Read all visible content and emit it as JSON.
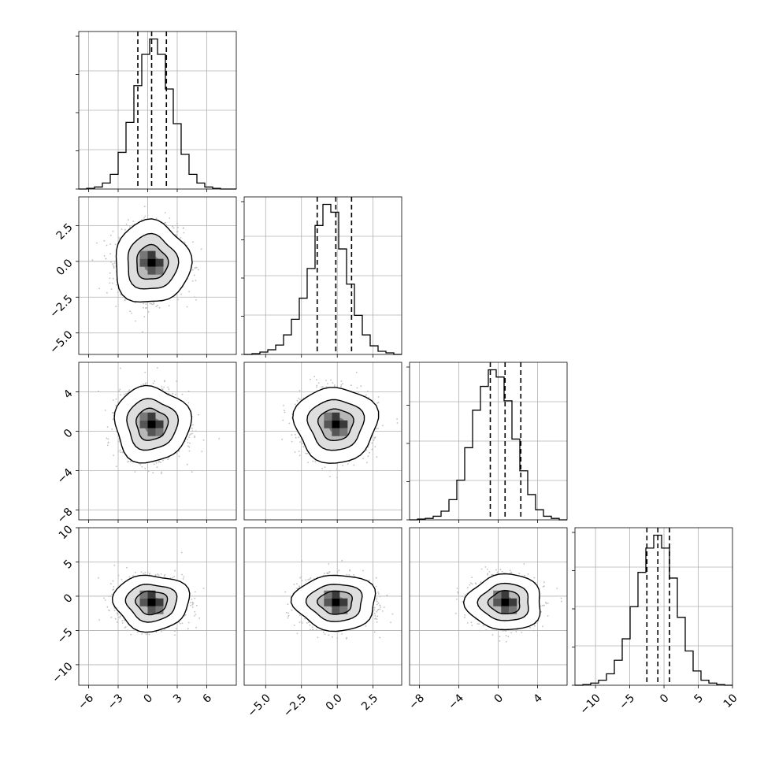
{
  "chart_data": [
    {
      "type": "histogram",
      "variable_index": 0,
      "xlim": [
        -7,
        9
      ],
      "bin_edges": [
        -7,
        -6.2,
        -5.4,
        -4.6,
        -3.8,
        -3.0,
        -2.2,
        -1.4,
        -0.6,
        0.2,
        1.0,
        1.8,
        2.6,
        3.4,
        4.2,
        5.0,
        5.8,
        6.6,
        7.4,
        8.2,
        9.0
      ],
      "counts": [
        0,
        1,
        3,
        9,
        22,
        55,
        100,
        155,
        202,
        225,
        202,
        150,
        98,
        52,
        22,
        9,
        3,
        1,
        0,
        0
      ],
      "quantiles": [
        -1.0,
        0.4,
        1.9
      ],
      "grid": true
    },
    {
      "type": "histogram",
      "variable_index": 1,
      "xlim": [
        -6.5,
        4.5
      ],
      "bin_edges": [
        -6.5,
        -5.95,
        -5.4,
        -4.85,
        -4.3,
        -3.75,
        -3.2,
        -2.65,
        -2.1,
        -1.55,
        -1.0,
        -0.45,
        0.1,
        0.65,
        1.2,
        1.75,
        2.3,
        2.85,
        3.4,
        3.95,
        4.5
      ],
      "counts": [
        0,
        1,
        3,
        6,
        12,
        25,
        45,
        72,
        110,
        165,
        192,
        182,
        135,
        90,
        50,
        25,
        11,
        4,
        2,
        0
      ],
      "quantiles": [
        -1.4,
        -0.1,
        1.0
      ],
      "grid": true
    },
    {
      "type": "histogram",
      "variable_index": 2,
      "xlim": [
        -9,
        7
      ],
      "bin_edges": [
        -9,
        -8.2,
        -7.4,
        -6.6,
        -5.8,
        -5.0,
        -4.2,
        -3.4,
        -2.6,
        -1.8,
        -1.0,
        -0.2,
        0.6,
        1.4,
        2.2,
        3.0,
        3.8,
        4.6,
        5.4,
        6.2,
        7.0
      ],
      "counts": [
        0,
        1,
        2,
        5,
        12,
        28,
        55,
        100,
        152,
        185,
        208,
        198,
        165,
        112,
        68,
        35,
        14,
        5,
        2,
        0
      ],
      "quantiles": [
        -0.8,
        0.7,
        2.3
      ],
      "grid": true
    },
    {
      "type": "histogram",
      "variable_index": 3,
      "xlim": [
        -13,
        10
      ],
      "bin_edges": [
        -13,
        -11.85,
        -10.7,
        -9.55,
        -8.4,
        -7.25,
        -6.1,
        -4.95,
        -3.8,
        -2.65,
        -1.5,
        -0.35,
        0.8,
        1.95,
        3.1,
        4.25,
        5.4,
        6.55,
        7.7,
        8.85,
        10.0
      ],
      "counts": [
        0,
        1,
        3,
        7,
        16,
        35,
        65,
        110,
        158,
        192,
        210,
        192,
        150,
        95,
        48,
        20,
        7,
        3,
        1,
        0
      ],
      "quantiles": [
        -2.5,
        -0.9,
        0.8
      ],
      "grid": true
    },
    {
      "type": "scatter",
      "pair": [
        0,
        1
      ],
      "x_mean": 0.4,
      "y_mean": -0.1,
      "x_sd": 1.6,
      "y_sd": 1.2,
      "xlim": [
        -7,
        9
      ],
      "ylim": [
        -6.5,
        4.5
      ],
      "contours": true,
      "density": true
    },
    {
      "type": "scatter",
      "pair": [
        0,
        2
      ],
      "x_mean": 0.4,
      "y_mean": 0.7,
      "x_sd": 1.6,
      "y_sd": 1.6,
      "xlim": [
        -7,
        9
      ],
      "ylim": [
        -9,
        7
      ],
      "contours": true,
      "density": true
    },
    {
      "type": "scatter",
      "pair": [
        1,
        2
      ],
      "x_mean": -0.1,
      "y_mean": 0.7,
      "x_sd": 1.2,
      "y_sd": 1.6,
      "xlim": [
        -6.5,
        4.5
      ],
      "ylim": [
        -9,
        7
      ],
      "contours": true,
      "density": true
    },
    {
      "type": "scatter",
      "pair": [
        0,
        3
      ],
      "x_mean": 0.4,
      "y_mean": -0.9,
      "x_sd": 1.6,
      "y_sd": 1.7,
      "xlim": [
        -7,
        9
      ],
      "ylim": [
        -13,
        10
      ],
      "contours": true,
      "density": true
    },
    {
      "type": "scatter",
      "pair": [
        1,
        3
      ],
      "x_mean": -0.1,
      "y_mean": -0.9,
      "x_sd": 1.2,
      "y_sd": 1.7,
      "xlim": [
        -6.5,
        4.5
      ],
      "ylim": [
        -13,
        10
      ],
      "contours": true,
      "density": true
    },
    {
      "type": "scatter",
      "pair": [
        2,
        3
      ],
      "x_mean": 0.7,
      "y_mean": -0.9,
      "x_sd": 1.6,
      "y_sd": 1.7,
      "xlim": [
        -9,
        7
      ],
      "ylim": [
        -13,
        10
      ],
      "contours": true,
      "density": true
    }
  ],
  "axes": {
    "x_ticks": [
      {
        "values": [
          -6,
          -3,
          0,
          3,
          6
        ],
        "labels": [
          "−6",
          "−3",
          "0",
          "3",
          "6"
        ]
      },
      {
        "values": [
          -5.0,
          -2.5,
          0.0,
          2.5
        ],
        "labels": [
          "−5.0",
          "−2.5",
          "0.0",
          "2.5"
        ]
      },
      {
        "values": [
          -8,
          -4,
          0,
          4
        ],
        "labels": [
          "−8",
          "−4",
          "0",
          "4"
        ]
      },
      {
        "values": [
          -10,
          -5,
          0,
          5,
          10
        ],
        "labels": [
          "−10",
          "−5",
          "0",
          "5",
          "10"
        ]
      }
    ],
    "y_ticks": [
      null,
      {
        "values": [
          2.5,
          0.0,
          -2.5,
          -5.0
        ],
        "labels": [
          "2.5",
          "0.0",
          "−2.5",
          "−5.0"
        ]
      },
      {
        "values": [
          4,
          0,
          -4,
          -8
        ],
        "labels": [
          "4",
          "0",
          "−4",
          "−8"
        ]
      },
      {
        "values": [
          10,
          5,
          0,
          -5,
          -10
        ],
        "labels": [
          "10",
          "5",
          "0",
          "−5",
          "−10"
        ]
      }
    ]
  },
  "style": {
    "line_color": "#000000",
    "grid_color": "#b0b0b0",
    "point_color": "#bfbfbf",
    "density_palette": [
      "#ffffff",
      "#e6e6e6",
      "#c6c6c6",
      "#9a9a9a",
      "#686868",
      "#3a3a3a",
      "#000000"
    ]
  }
}
